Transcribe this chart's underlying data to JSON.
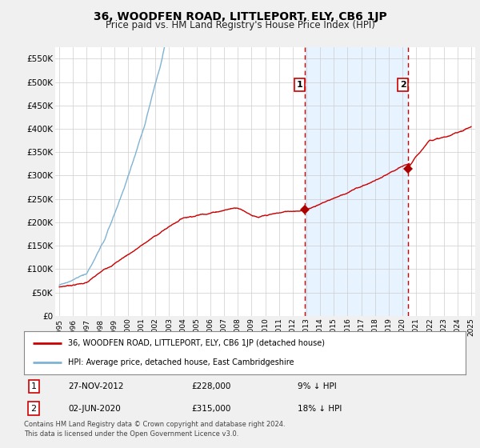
{
  "title": "36, WOODFEN ROAD, LITTLEPORT, ELY, CB6 1JP",
  "subtitle": "Price paid vs. HM Land Registry's House Price Index (HPI)",
  "legend_line1": "36, WOODFEN ROAD, LITTLEPORT, ELY, CB6 1JP (detached house)",
  "legend_line2": "HPI: Average price, detached house, East Cambridgeshire",
  "transaction1": {
    "label": "1",
    "date": "27-NOV-2012",
    "price": "£228,000",
    "hpi": "9% ↓ HPI"
  },
  "transaction2": {
    "label": "2",
    "date": "02-JUN-2020",
    "price": "£315,000",
    "hpi": "18% ↓ HPI"
  },
  "footer": "Contains HM Land Registry data © Crown copyright and database right 2024.\nThis data is licensed under the Open Government Licence v3.0.",
  "hpi_color": "#7fb3d3",
  "price_color": "#cc0000",
  "marker_color": "#aa0000",
  "vline_color": "#cc0000",
  "shade_color": "#ddeeff",
  "bg_color": "#f0f0f0",
  "plot_bg": "#ffffff",
  "ylim": [
    0,
    575000
  ],
  "yticks": [
    0,
    50000,
    100000,
    150000,
    200000,
    250000,
    300000,
    350000,
    400000,
    450000,
    500000,
    550000
  ],
  "ytick_labels": [
    "£0",
    "£50K",
    "£100K",
    "£150K",
    "£200K",
    "£250K",
    "£300K",
    "£350K",
    "£400K",
    "£450K",
    "£500K",
    "£550K"
  ],
  "xtick_years": [
    1995,
    1996,
    1997,
    1998,
    1999,
    2000,
    2001,
    2002,
    2003,
    2004,
    2005,
    2006,
    2007,
    2008,
    2009,
    2010,
    2011,
    2012,
    2013,
    2014,
    2015,
    2016,
    2017,
    2018,
    2019,
    2020,
    2021,
    2022,
    2023,
    2024,
    2025
  ],
  "transaction1_x": 2012.9,
  "transaction1_y": 228000,
  "transaction2_x": 2020.42,
  "transaction2_y": 315000,
  "xlim_left": 1994.7,
  "xlim_right": 2025.3
}
